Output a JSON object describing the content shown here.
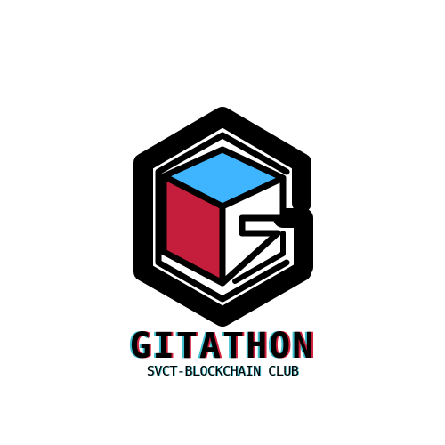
{
  "logo": {
    "brand_name": "GITATHON",
    "tagline": "SVCT-BLOCKCHAIN CLUB"
  },
  "colors": {
    "outline": "#000000",
    "cube_top": "#3fb4ff",
    "cube_left": "#c41e3c",
    "cube_right": "#ffffff",
    "background": "#ffffff",
    "text_shadow_cyan": "#40c0d0",
    "text_shadow_red": "#d0203c"
  }
}
